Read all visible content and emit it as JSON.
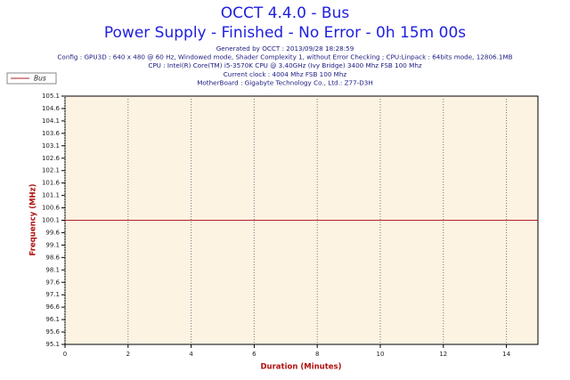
{
  "chart_data": {
    "type": "line",
    "title": "OCCT 4.4.0 - Bus",
    "subtitle": "Power Supply - Finished - No Error - 0h 15m 00s",
    "info": [
      "Generated by OCCT : 2013/09/28 18:28:59",
      "Config : GPU3D : 640 x 480 @ 60 Hz, Windowed mode, Shader Complexity 1, without Error Checking ; CPU:Linpack : 64bits mode, 12806.1MB",
      "CPU : Intel(R) Core(TM) i5-3570K CPU @ 3.40GHz (Ivy Bridge) 3400 Mhz FSB 100 Mhz",
      "Current clock : 4004 Mhz FSB 100 Mhz",
      "MotherBoard : Gigabyte Technology Co., Ltd.: Z77-D3H"
    ],
    "x_label": "Duration (Minutes)",
    "y_label": "Frequency (MHz)",
    "x": [
      0,
      15
    ],
    "series": [
      {
        "name": "Bus",
        "color": "#b22222",
        "values": [
          100.1,
          100.1
        ]
      }
    ],
    "xlim": [
      0,
      15
    ],
    "xticks": [
      0,
      2,
      4,
      6,
      8,
      10,
      12,
      14
    ],
    "ylim": [
      95.1,
      105.1
    ],
    "yticks": [
      95.1,
      95.6,
      96.1,
      96.6,
      97.1,
      97.6,
      98.1,
      98.6,
      99.1,
      99.6,
      100.1,
      100.6,
      101.1,
      101.6,
      102.1,
      102.6,
      103.1,
      103.6,
      104.1,
      104.6,
      105.1
    ],
    "xgrid": true,
    "ygrid": false,
    "legend": "top-left"
  }
}
